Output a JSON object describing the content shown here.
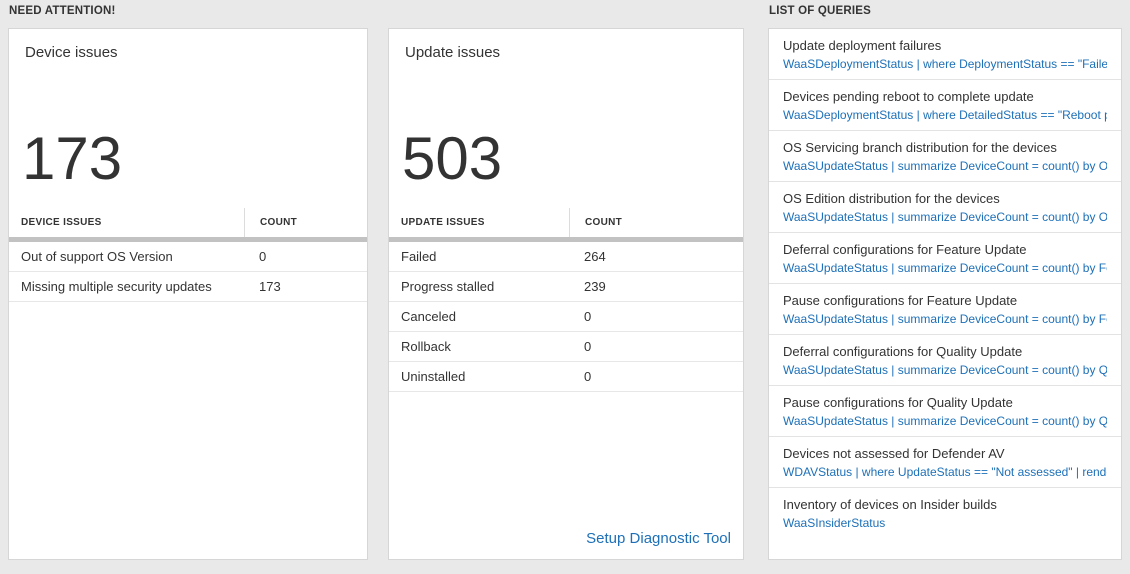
{
  "colors": {
    "page-bg": "#e9e9e9",
    "card-border": "#d6d6d6",
    "text-dark": "#333333",
    "link-blue": "#1d70b8",
    "divider-thick": "#c2c2c2",
    "row-border": "#e7e7e7"
  },
  "need_attention": {
    "header": "NEED ATTENTION!",
    "device_card": {
      "title": "Device issues",
      "count": "173",
      "table": {
        "headers": [
          "DEVICE ISSUES",
          "COUNT"
        ],
        "rows": [
          {
            "label": "Out of support OS Version",
            "count": "0"
          },
          {
            "label": "Missing multiple security updates",
            "count": "173"
          }
        ]
      }
    },
    "update_card": {
      "title": "Update issues",
      "count": "503",
      "table": {
        "headers": [
          "UPDATE ISSUES",
          "COUNT"
        ],
        "rows": [
          {
            "label": "Failed",
            "count": "264"
          },
          {
            "label": "Progress stalled",
            "count": "239"
          },
          {
            "label": "Canceled",
            "count": "0"
          },
          {
            "label": "Rollback",
            "count": "0"
          },
          {
            "label": "Uninstalled",
            "count": "0"
          }
        ]
      },
      "footer_link": "Setup Diagnostic Tool"
    }
  },
  "queries": {
    "header": "LIST OF QUERIES",
    "items": [
      {
        "title": "Update deployment failures",
        "query": "WaaSDeploymentStatus | where DeploymentStatus == \"Failed\" |..."
      },
      {
        "title": "Devices pending reboot to complete update",
        "query": "WaaSDeploymentStatus | where DetailedStatus == \"Reboot pend..."
      },
      {
        "title": "OS Servicing branch distribution for the devices",
        "query": "WaaSUpdateStatus | summarize DeviceCount = count() by OSSer..."
      },
      {
        "title": "OS Edition distribution for the devices",
        "query": "WaaSUpdateStatus | summarize DeviceCount = count() by OSEdit..."
      },
      {
        "title": "Deferral configurations for Feature Update",
        "query": "WaaSUpdateStatus | summarize DeviceCount = count() by Featur..."
      },
      {
        "title": "Pause configurations for Feature Update",
        "query": "WaaSUpdateStatus | summarize DeviceCount = count() by Featur..."
      },
      {
        "title": "Deferral configurations for Quality Update",
        "query": "WaaSUpdateStatus | summarize DeviceCount = count() by Qualit..."
      },
      {
        "title": "Pause configurations for Quality Update",
        "query": "WaaSUpdateStatus | summarize DeviceCount = count() by Qualit..."
      },
      {
        "title": "Devices not assessed for Defender AV",
        "query": "WDAVStatus | where UpdateStatus == \"Not assessed\" | render ta..."
      },
      {
        "title": "Inventory of devices on Insider builds",
        "query": "WaaSInsiderStatus"
      }
    ]
  }
}
